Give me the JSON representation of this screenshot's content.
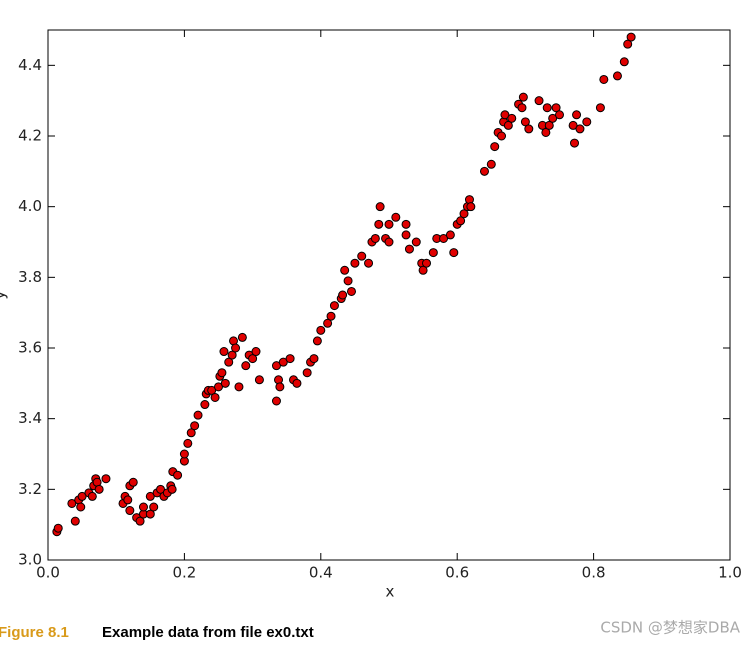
{
  "chart_data": {
    "type": "scatter",
    "xlabel": "x",
    "ylabel": "y",
    "x": [
      0.013,
      0.015,
      0.035,
      0.04,
      0.045,
      0.048,
      0.05,
      0.06,
      0.065,
      0.067,
      0.07,
      0.072,
      0.075,
      0.085,
      0.11,
      0.113,
      0.117,
      0.12,
      0.12,
      0.125,
      0.13,
      0.135,
      0.14,
      0.14,
      0.15,
      0.15,
      0.155,
      0.16,
      0.165,
      0.17,
      0.175,
      0.18,
      0.182,
      0.183,
      0.19,
      0.2,
      0.2,
      0.205,
      0.21,
      0.215,
      0.22,
      0.23,
      0.232,
      0.235,
      0.24,
      0.245,
      0.25,
      0.252,
      0.255,
      0.258,
      0.26,
      0.265,
      0.27,
      0.272,
      0.275,
      0.28,
      0.285,
      0.29,
      0.295,
      0.3,
      0.305,
      0.31,
      0.335,
      0.335,
      0.338,
      0.34,
      0.345,
      0.355,
      0.36,
      0.365,
      0.38,
      0.385,
      0.39,
      0.395,
      0.4,
      0.41,
      0.415,
      0.42,
      0.43,
      0.432,
      0.435,
      0.44,
      0.445,
      0.45,
      0.46,
      0.47,
      0.475,
      0.48,
      0.485,
      0.487,
      0.495,
      0.5,
      0.5,
      0.51,
      0.525,
      0.525,
      0.53,
      0.54,
      0.548,
      0.55,
      0.555,
      0.565,
      0.57,
      0.58,
      0.59,
      0.595,
      0.6,
      0.605,
      0.61,
      0.615,
      0.618,
      0.62,
      0.64,
      0.65,
      0.655,
      0.66,
      0.665,
      0.668,
      0.67,
      0.675,
      0.68,
      0.69,
      0.695,
      0.697,
      0.7,
      0.705,
      0.72,
      0.725,
      0.73,
      0.732,
      0.735,
      0.74,
      0.745,
      0.75,
      0.77,
      0.772,
      0.775,
      0.78,
      0.79,
      0.81,
      0.815,
      0.835,
      0.845,
      0.85,
      0.855
    ],
    "values": [
      3.08,
      3.09,
      3.16,
      3.11,
      3.17,
      3.15,
      3.18,
      3.19,
      3.18,
      3.21,
      3.23,
      3.22,
      3.2,
      3.23,
      3.16,
      3.18,
      3.17,
      3.14,
      3.21,
      3.22,
      3.12,
      3.11,
      3.13,
      3.15,
      3.13,
      3.18,
      3.15,
      3.19,
      3.2,
      3.18,
      3.19,
      3.21,
      3.2,
      3.25,
      3.24,
      3.28,
      3.3,
      3.33,
      3.36,
      3.38,
      3.41,
      3.44,
      3.47,
      3.48,
      3.48,
      3.46,
      3.49,
      3.52,
      3.53,
      3.59,
      3.5,
      3.56,
      3.58,
      3.62,
      3.6,
      3.49,
      3.63,
      3.55,
      3.58,
      3.57,
      3.59,
      3.51,
      3.55,
      3.45,
      3.51,
      3.49,
      3.56,
      3.57,
      3.51,
      3.5,
      3.53,
      3.56,
      3.57,
      3.62,
      3.65,
      3.67,
      3.69,
      3.72,
      3.74,
      3.75,
      3.82,
      3.79,
      3.76,
      3.84,
      3.86,
      3.84,
      3.9,
      3.91,
      3.95,
      4.0,
      3.91,
      3.9,
      3.95,
      3.97,
      3.95,
      3.92,
      3.88,
      3.9,
      3.84,
      3.82,
      3.84,
      3.87,
      3.91,
      3.91,
      3.92,
      3.87,
      3.95,
      3.96,
      3.98,
      4.0,
      4.02,
      4.0,
      4.1,
      4.12,
      4.17,
      4.21,
      4.2,
      4.24,
      4.26,
      4.23,
      4.25,
      4.29,
      4.28,
      4.31,
      4.24,
      4.22,
      4.3,
      4.23,
      4.21,
      4.28,
      4.23,
      4.25,
      4.28,
      4.26,
      4.23,
      4.18,
      4.26,
      4.22,
      4.24,
      4.28,
      4.36,
      4.37,
      4.41,
      4.46,
      4.48
    ],
    "color": "#e00000",
    "xlim": [
      0,
      1
    ],
    "xticks": [
      {
        "value": 0,
        "label": "0.0"
      },
      0.2,
      0.4,
      0.6,
      0.8,
      {
        "value": 1,
        "label": "1.0"
      }
    ],
    "ylim": [
      3.0,
      4.5
    ],
    "yticks": [
      {
        "value": 3,
        "label": "3.0"
      },
      3.2,
      3.4,
      3.6,
      3.8,
      {
        "value": 4,
        "label": "4.0"
      },
      4.2,
      4.4
    ],
    "grid": false
  },
  "figure": {
    "label": "Figure 8.1",
    "caption": "Example data from file ex0.txt"
  },
  "watermark": "CSDN @梦想家DBA"
}
